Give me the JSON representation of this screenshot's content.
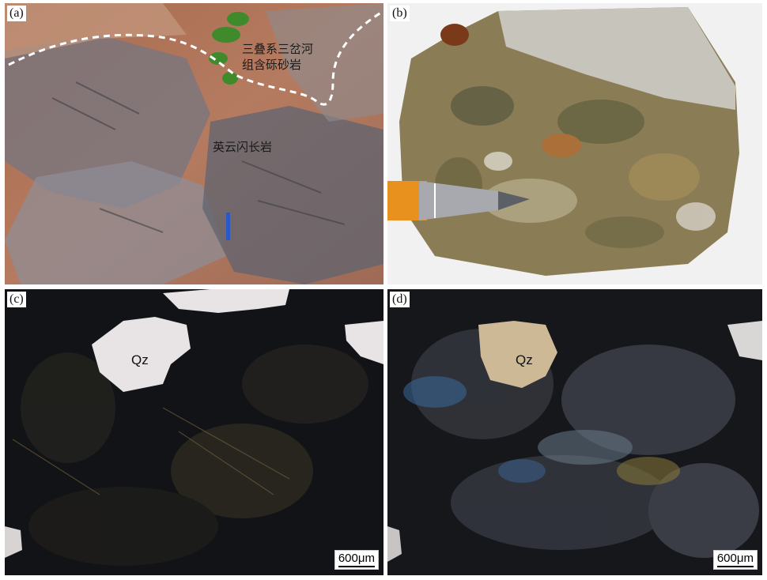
{
  "panels": {
    "a": {
      "label": "(a)",
      "annotation_upper": [
        "三叠系三岔河",
        "组含砾砂岩"
      ],
      "annotation_lower": "英云闪长岩"
    },
    "b": {
      "label": "(b)"
    },
    "c": {
      "label": "(c)",
      "mineral": "Qz",
      "scale": "600μm"
    },
    "d": {
      "label": "(d)",
      "mineral": "Qz",
      "scale": "600μm"
    }
  },
  "colors": {
    "outcrop_soil": "#b87a5c",
    "outcrop_rock": "#6c6e78",
    "sample_rock": "#8a7e58",
    "thin_section_dark": "#101216",
    "quartz_ppl": "#e9e5e6",
    "quartz_xpl": "#c9b38a"
  }
}
